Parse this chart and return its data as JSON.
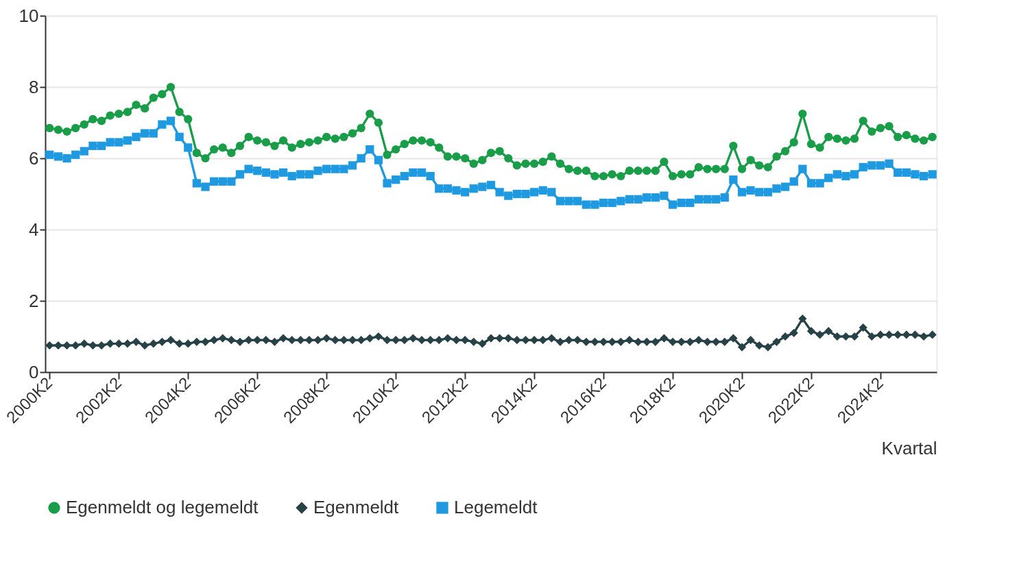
{
  "chart_data": {
    "type": "line",
    "xlabel": "Kvartal",
    "categories": [
      "2000K2",
      null,
      null,
      null,
      null,
      null,
      null,
      null,
      "2002K2",
      null,
      null,
      null,
      null,
      null,
      null,
      null,
      "2004K2",
      null,
      null,
      null,
      null,
      null,
      null,
      null,
      "2006K2",
      null,
      null,
      null,
      null,
      null,
      null,
      null,
      "2008K2",
      null,
      null,
      null,
      null,
      null,
      null,
      null,
      "2010K2",
      null,
      null,
      null,
      null,
      null,
      null,
      null,
      "2012K2",
      null,
      null,
      null,
      null,
      null,
      null,
      null,
      "2014K2",
      null,
      null,
      null,
      null,
      null,
      null,
      null,
      "2016K2",
      null,
      null,
      null,
      null,
      null,
      null,
      null,
      "2018K2",
      null,
      null,
      null,
      null,
      null,
      null,
      null,
      "2020K2",
      null,
      null,
      null,
      null,
      null,
      null,
      null,
      "2022K2",
      null,
      null,
      null,
      null,
      null,
      null,
      null,
      "2024K2",
      null,
      null,
      null,
      null,
      null,
      null
    ],
    "series": [
      {
        "name": "Egenmeldt og legemeldt",
        "color": "#1a9d49",
        "marker": "circle",
        "values": [
          6.85,
          6.8,
          6.75,
          6.85,
          6.95,
          7.1,
          7.05,
          7.2,
          7.25,
          7.3,
          7.5,
          7.4,
          7.7,
          7.8,
          8.0,
          7.3,
          7.1,
          6.15,
          6.0,
          6.25,
          6.3,
          6.15,
          6.35,
          6.6,
          6.5,
          6.45,
          6.35,
          6.5,
          6.3,
          6.4,
          6.45,
          6.5,
          6.6,
          6.55,
          6.6,
          6.7,
          6.85,
          7.25,
          7.0,
          6.1,
          6.25,
          6.4,
          6.5,
          6.5,
          6.45,
          6.3,
          6.05,
          6.05,
          6.0,
          5.85,
          5.95,
          6.15,
          6.2,
          6.0,
          5.8,
          5.85,
          5.85,
          5.9,
          6.05,
          5.85,
          5.7,
          5.65,
          5.65,
          5.5,
          5.5,
          5.55,
          5.5,
          5.65,
          5.65,
          5.65,
          5.65,
          5.9,
          5.5,
          5.55,
          5.55,
          5.75,
          5.7,
          5.7,
          5.7,
          6.35,
          5.7,
          5.95,
          5.8,
          5.75,
          6.05,
          6.2,
          6.45,
          7.25,
          6.4,
          6.3,
          6.6,
          6.55,
          6.5,
          6.55,
          7.05,
          6.75,
          6.85,
          6.9,
          6.6,
          6.65,
          6.55,
          6.5,
          6.6
        ]
      },
      {
        "name": "Egenmeldt",
        "color": "#274247",
        "marker": "diamond",
        "values": [
          0.75,
          0.75,
          0.75,
          0.75,
          0.8,
          0.75,
          0.75,
          0.8,
          0.8,
          0.8,
          0.85,
          0.75,
          0.8,
          0.85,
          0.9,
          0.8,
          0.8,
          0.85,
          0.85,
          0.9,
          0.95,
          0.9,
          0.85,
          0.9,
          0.9,
          0.9,
          0.85,
          0.95,
          0.9,
          0.9,
          0.9,
          0.9,
          0.95,
          0.9,
          0.9,
          0.9,
          0.9,
          0.95,
          1.0,
          0.9,
          0.9,
          0.9,
          0.95,
          0.9,
          0.9,
          0.9,
          0.95,
          0.9,
          0.9,
          0.85,
          0.8,
          0.95,
          0.95,
          0.95,
          0.9,
          0.9,
          0.9,
          0.9,
          0.95,
          0.85,
          0.9,
          0.9,
          0.85,
          0.85,
          0.85,
          0.85,
          0.85,
          0.9,
          0.85,
          0.85,
          0.85,
          0.95,
          0.85,
          0.85,
          0.85,
          0.9,
          0.85,
          0.85,
          0.85,
          0.95,
          0.7,
          0.9,
          0.75,
          0.7,
          0.85,
          1.0,
          1.1,
          1.5,
          1.15,
          1.05,
          1.15,
          1.0,
          1.0,
          1.0,
          1.25,
          1.0,
          1.05,
          1.05,
          1.05,
          1.05,
          1.05,
          1.0,
          1.05
        ]
      },
      {
        "name": "Legemeldt",
        "color": "#1f9ae0",
        "marker": "square",
        "values": [
          6.1,
          6.05,
          6.0,
          6.1,
          6.2,
          6.35,
          6.35,
          6.45,
          6.45,
          6.5,
          6.6,
          6.7,
          6.7,
          6.95,
          7.05,
          6.6,
          6.3,
          5.3,
          5.2,
          5.35,
          5.35,
          5.35,
          5.55,
          5.7,
          5.65,
          5.6,
          5.55,
          5.6,
          5.5,
          5.55,
          5.55,
          5.65,
          5.7,
          5.7,
          5.7,
          5.8,
          6.0,
          6.25,
          5.95,
          5.3,
          5.4,
          5.5,
          5.6,
          5.6,
          5.5,
          5.15,
          5.15,
          5.1,
          5.05,
          5.15,
          5.2,
          5.25,
          5.05,
          4.95,
          5.0,
          5.0,
          5.05,
          5.1,
          5.05,
          4.8,
          4.8,
          4.8,
          4.7,
          4.7,
          4.75,
          4.75,
          4.8,
          4.85,
          4.85,
          4.9,
          4.9,
          4.95,
          4.7,
          4.75,
          4.75,
          4.85,
          4.85,
          4.85,
          4.9,
          5.4,
          5.05,
          5.1,
          5.05,
          5.05,
          5.15,
          5.2,
          5.35,
          5.7,
          5.3,
          5.3,
          5.45,
          5.55,
          5.5,
          5.55,
          5.75,
          5.8,
          5.8,
          5.85,
          5.6,
          5.6,
          5.55,
          5.5,
          5.55
        ]
      }
    ],
    "ylim": [
      0,
      10
    ],
    "yticks": [
      0,
      2,
      4,
      6,
      8,
      10
    ],
    "grid": "y",
    "legend": "bottom"
  }
}
